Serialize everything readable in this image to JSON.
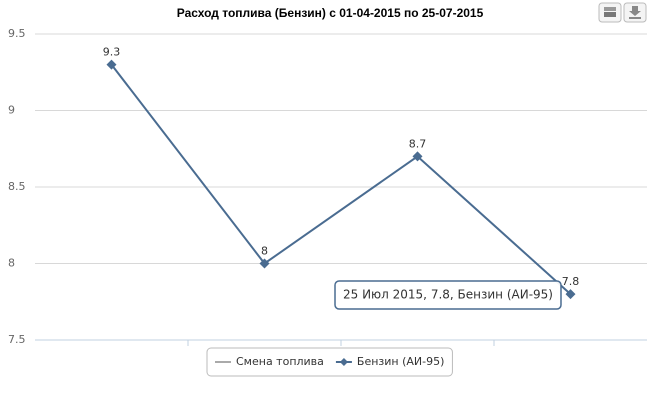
{
  "chart_data": {
    "type": "line",
    "title": "Расход топлива (Бензин) с 01-04-2015 по 25-07-2015",
    "categories": [
      null,
      null,
      null,
      null
    ],
    "series": [
      {
        "name": "Смена топлива",
        "color": "#aaaaaa",
        "values": [
          null,
          null,
          null,
          null
        ]
      },
      {
        "name": "Бензин (АИ-95)",
        "color": "#4a6c91",
        "values": [
          9.3,
          8,
          8.7,
          7.8
        ]
      }
    ],
    "ylim": [
      7.5,
      9.5
    ],
    "yticks": [
      7.5,
      8,
      8.5,
      9,
      9.5
    ],
    "grid": true,
    "legend": "bottom",
    "tooltip": "25 Июл 2015, 7.8, Бензин (АИ-95)"
  }
}
